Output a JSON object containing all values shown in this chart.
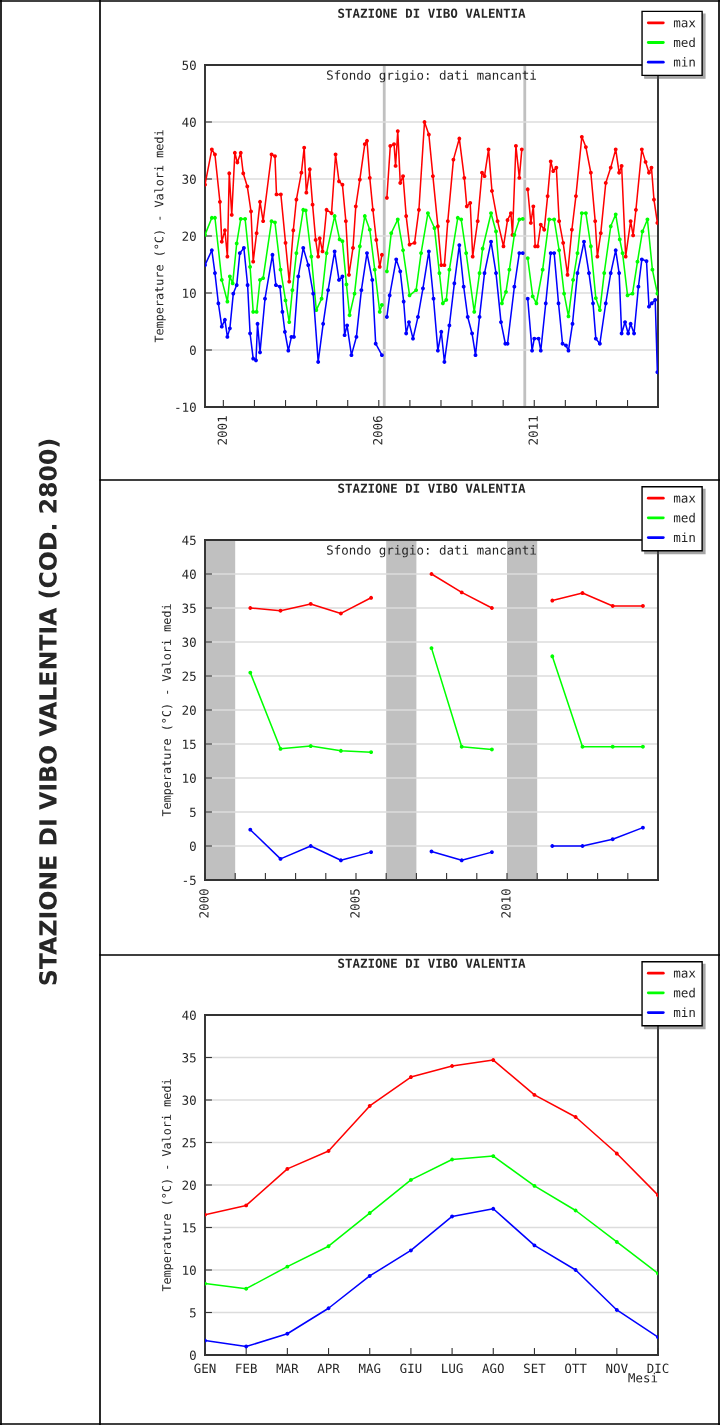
{
  "chart_data": [
    {
      "type": "other",
      "title": "STAZIONE DI VIBO VALENTIA (COD. 2800)"
    },
    {
      "type": "line",
      "title": "STAZIONE DI VIBO VALENTIA",
      "ylabel": "Temperature (°C) - Valori medi",
      "annotations": [
        "Sfondo grigio: dati mancanti"
      ],
      "xlim": [
        2000.41,
        2014.98
      ],
      "xticks": [
        {
          "value": 2001,
          "label": "2001"
        },
        {
          "value": 2002,
          "label": null
        },
        {
          "value": 2003,
          "label": null
        },
        {
          "value": 2004,
          "label": null
        },
        {
          "value": 2005,
          "label": null
        },
        {
          "value": 2006,
          "label": "2006"
        },
        {
          "value": 2007,
          "label": null
        },
        {
          "value": 2008,
          "label": null
        },
        {
          "value": 2009,
          "label": null
        },
        {
          "value": 2010,
          "label": null
        },
        {
          "value": 2011,
          "label": "2011"
        },
        {
          "value": 2012,
          "label": null
        },
        {
          "value": 2013,
          "label": null
        },
        {
          "value": 2014,
          "label": null
        }
      ],
      "ylim": [
        -10,
        50
      ],
      "yticks": [
        -10,
        0,
        10,
        20,
        30,
        40,
        50
      ],
      "grid": "y",
      "legend": "top right",
      "marker": "circle",
      "line_style": "solid",
      "bands": [
        {
          "axis": "x",
          "from": 2006.13,
          "to": 2006.22,
          "color": "#c0c0c0"
        },
        {
          "axis": "x",
          "from": 2010.65,
          "to": 2010.74,
          "color": "#c0c0c0"
        }
      ],
      "series": [
        {
          "name": "max",
          "color": "#ff0000",
          "x": [
            2000.41,
            2000.63,
            2000.73,
            2000.89,
            2000.95,
            2001.05,
            2001.13,
            2001.19,
            2001.27,
            2001.37,
            2001.45,
            2001.56,
            2001.64,
            2001.77,
            2001.89,
            2001.96,
            2002.07,
            2002.18,
            2002.28,
            2002.55,
            2002.66,
            2002.71,
            2002.85,
            2003.0,
            2003.12,
            2003.25,
            2003.35,
            2003.51,
            2003.6,
            2003.67,
            2003.78,
            2003.87,
            2003.97,
            2004.05,
            2004.1,
            2004.19,
            2004.32,
            2004.48,
            2004.61,
            2004.72,
            2004.83,
            2004.94,
            2005.04,
            2005.17,
            2005.26,
            2005.39,
            2005.55,
            2005.62,
            2005.71,
            2005.81,
            2005.92,
            2006.03,
            2006.1,
            2006.18,
            2006.26,
            2006.37,
            2006.49,
            2006.54,
            2006.61,
            2006.69,
            2006.78,
            2006.88,
            2006.99,
            2007.15,
            2007.29,
            2007.47,
            2007.61,
            2007.74,
            2007.9,
            2008.01,
            2008.11,
            2008.22,
            2008.4,
            2008.59,
            2008.75,
            2008.83,
            2008.94,
            2009.02,
            2009.18,
            2009.32,
            2009.4,
            2009.53,
            2009.64,
            2009.82,
            2010.01,
            2010.14,
            2010.25,
            2010.3,
            2010.41,
            2010.52,
            2010.6,
            2010.7,
            2010.79,
            2010.89,
            2010.97,
            2011.03,
            2011.11,
            2011.21,
            2011.32,
            2011.43,
            2011.53,
            2011.61,
            2011.71,
            2011.8,
            2011.93,
            2012.07,
            2012.21,
            2012.34,
            2012.53,
            2012.66,
            2012.82,
            2012.96,
            2013.03,
            2013.14,
            2013.3,
            2013.46,
            2013.62,
            2013.73,
            2013.81,
            2013.94,
            2014.1,
            2014.18,
            2014.27,
            2014.46,
            2014.58,
            2014.69,
            2014.77,
            2014.85,
            2014.96
          ],
          "values": [
            29,
            35.2,
            34.3,
            26,
            19,
            21,
            16.4,
            31,
            23.7,
            34.6,
            32.9,
            34.6,
            31,
            28.7,
            24.3,
            15.5,
            20.5,
            26,
            22.6,
            34.3,
            34,
            27.3,
            27.3,
            18.8,
            12,
            21,
            26.4,
            31.1,
            35.5,
            27.6,
            31.7,
            25.5,
            19.3,
            16.4,
            19.6,
            17.3,
            24.6,
            24,
            34.3,
            29.6,
            29,
            22.6,
            13.2,
            17.9,
            25.2,
            29.9,
            36.1,
            36.7,
            30.2,
            24.6,
            19.3,
            14.6,
            16.7,
            null,
            26.7,
            35.8,
            36.1,
            32.3,
            38.4,
            29.3,
            30.5,
            23.5,
            18.5,
            18.8,
            24.6,
            40,
            37.8,
            30.5,
            21.7,
            14.9,
            14.9,
            22.6,
            33.4,
            37.1,
            30.2,
            25.2,
            25.8,
            16.4,
            22.6,
            31.1,
            30.5,
            35.2,
            27.9,
            22.6,
            18.2,
            22.8,
            24,
            20.2,
            35.8,
            30.2,
            35.2,
            null,
            28.2,
            22.3,
            25.2,
            18.2,
            18.2,
            22,
            21.1,
            27,
            33.1,
            31.4,
            32,
            22.6,
            18.8,
            13.2,
            21.1,
            27,
            37.4,
            35.6,
            31.1,
            22.6,
            16.4,
            20.5,
            29.3,
            32,
            35.2,
            31.1,
            32.3,
            16.4,
            22.6,
            20.1,
            24.6,
            35.2,
            33,
            31.1,
            32,
            26.4,
            22.3
          ]
        },
        {
          "name": "med",
          "color": "#00ff00",
          "x": [
            2000.41,
            2000.63,
            2000.73,
            2000.95,
            2001.13,
            2001.21,
            2001.3,
            2001.43,
            2001.56,
            2001.7,
            2001.86,
            2001.96,
            2002.07,
            2002.18,
            2002.28,
            2002.55,
            2002.66,
            2002.84,
            2003.0,
            2003.12,
            2003.22,
            2003.35,
            2003.57,
            2003.65,
            2003.83,
            2003.99,
            2004.16,
            2004.32,
            2004.58,
            2004.74,
            2004.83,
            2004.96,
            2005.06,
            2005.22,
            2005.39,
            2005.55,
            2005.71,
            2005.87,
            2006.03,
            2006.1,
            2006.18,
            2006.26,
            2006.4,
            2006.61,
            2006.78,
            2006.99,
            2007.2,
            2007.36,
            2007.58,
            2007.79,
            2007.95,
            2008.06,
            2008.17,
            2008.27,
            2008.54,
            2008.65,
            2008.81,
            2009.07,
            2009.24,
            2009.34,
            2009.61,
            2009.77,
            2009.96,
            2010.09,
            2010.2,
            2010.36,
            2010.52,
            2010.63,
            2010.7,
            2010.79,
            2010.95,
            2011.07,
            2011.27,
            2011.48,
            2011.64,
            2011.8,
            2011.96,
            2012.1,
            2012.25,
            2012.39,
            2012.53,
            2012.66,
            2012.82,
            2012.98,
            2013.11,
            2013.25,
            2013.46,
            2013.62,
            2013.75,
            2013.84,
            2014.0,
            2014.16,
            2014.32,
            2014.48,
            2014.64,
            2014.8,
            2014.96
          ],
          "values": [
            20.2,
            23.2,
            23.2,
            12.3,
            8.5,
            12.9,
            11.7,
            18.7,
            23,
            23,
            14.6,
            6.7,
            6.7,
            12.3,
            12.6,
            22.6,
            22.4,
            14.1,
            8.7,
            4.9,
            10.5,
            17,
            24.6,
            24.5,
            16.4,
            7,
            9,
            17,
            23.5,
            19.4,
            19.1,
            11.5,
            6.1,
            9.9,
            18.2,
            23.5,
            21.1,
            14.1,
            6.7,
            7.9,
            null,
            13.8,
            20.5,
            22.9,
            17.5,
            9.6,
            10.5,
            17,
            24,
            21.4,
            13.5,
            8.2,
            8.8,
            14.1,
            23.2,
            22.9,
            17,
            6.7,
            13.5,
            17.8,
            24,
            20.8,
            8.2,
            10.2,
            14.1,
            20.2,
            22.9,
            23,
            null,
            16.1,
            9.4,
            8.2,
            14.1,
            22.9,
            22.9,
            17.5,
            9.9,
            5.9,
            12.3,
            17,
            24,
            24,
            18.2,
            9.1,
            7,
            13.5,
            21.7,
            23.8,
            19.4,
            17,
            9.6,
            9.9,
            15.5,
            20.8,
            22.9,
            14.1,
            9.9
          ]
        },
        {
          "name": "min",
          "color": "#0000ff",
          "x": [
            2000.41,
            2000.63,
            2000.73,
            2000.84,
            2000.95,
            2001.05,
            2001.13,
            2001.21,
            2001.32,
            2001.43,
            2001.53,
            2001.66,
            2001.78,
            2001.86,
            2001.96,
            2002.05,
            2002.1,
            2002.18,
            2002.34,
            2002.58,
            2002.69,
            2002.82,
            2002.9,
            2002.98,
            2003.09,
            2003.19,
            2003.27,
            2003.41,
            2003.57,
            2003.73,
            2003.89,
            2004.05,
            2004.21,
            2004.37,
            2004.58,
            2004.72,
            2004.83,
            2004.9,
            2004.98,
            2005.12,
            2005.28,
            2005.44,
            2005.62,
            2005.79,
            2005.9,
            2006.1,
            2006.18,
            2006.26,
            2006.35,
            2006.56,
            2006.69,
            2006.8,
            2006.88,
            2006.97,
            2007.1,
            2007.26,
            2007.42,
            2007.61,
            2007.76,
            2007.9,
            2008.01,
            2008.11,
            2008.27,
            2008.43,
            2008.59,
            2008.73,
            2008.86,
            2009.0,
            2009.11,
            2009.24,
            2009.4,
            2009.61,
            2009.77,
            2009.93,
            2010.07,
            2010.14,
            2010.36,
            2010.52,
            2010.63,
            2010.7,
            2010.79,
            2010.93,
            2011.0,
            2011.14,
            2011.21,
            2011.37,
            2011.53,
            2011.64,
            2011.78,
            2011.91,
            2012.02,
            2012.1,
            2012.23,
            2012.39,
            2012.6,
            2012.76,
            2012.89,
            2012.98,
            2013.11,
            2013.3,
            2013.46,
            2013.62,
            2013.73,
            2013.81,
            2013.92,
            2014.02,
            2014.1,
            2014.21,
            2014.35,
            2014.46,
            2014.61,
            2014.69,
            2014.78,
            2014.89,
            2014.96
          ],
          "values": [
            14.9,
            17.5,
            13.5,
            8.2,
            4.1,
            5.3,
            2.3,
            3.8,
            9.9,
            11.4,
            17,
            17.9,
            11.4,
            2.9,
            -1.5,
            -1.8,
            4.6,
            -0.4,
            9,
            16.7,
            11.4,
            11.1,
            6.7,
            3.2,
            -0.1,
            2.3,
            2.3,
            12.9,
            17.9,
            14.9,
            9.9,
            -2.1,
            4.6,
            10.5,
            17.3,
            12.3,
            12.9,
            2.6,
            4.3,
            -0.9,
            2.3,
            10.5,
            17,
            12.3,
            1.1,
            -0.9,
            null,
            5.8,
            9.6,
            15.9,
            13.8,
            8.5,
            2.9,
            4.9,
            2,
            5.8,
            10.8,
            17.3,
            9,
            -0.1,
            3.2,
            -2.1,
            4.3,
            11.7,
            18.4,
            11.1,
            5.8,
            2.9,
            -0.9,
            5.8,
            13.5,
            19,
            13.5,
            4.9,
            1.1,
            1.1,
            11.1,
            17,
            17,
            null,
            9,
            -0.1,
            2,
            2,
            -0.1,
            8.2,
            17,
            17,
            8.2,
            1.1,
            0.8,
            -0.1,
            4.6,
            13.5,
            19,
            13.5,
            8.2,
            2,
            1.1,
            8.2,
            13.5,
            17.5,
            13.5,
            2.9,
            4.9,
            2.9,
            4.6,
            2.9,
            11.1,
            15.9,
            15.6,
            7.6,
            8.2,
            8.8,
            -3.9
          ]
        }
      ]
    },
    {
      "type": "line",
      "title": "STAZIONE DI VIBO VALENTIA",
      "ylabel": "Temperature (°C) - Valori medi",
      "annotations": [
        "Sfondo grigio: dati mancanti"
      ],
      "x": [
        2001.5,
        2002.5,
        2003.5,
        2004.5,
        2005.5,
        2006.5,
        2007.5,
        2008.5,
        2009.5,
        2010.5,
        2011.5,
        2012.5,
        2013.5,
        2014.5
      ],
      "xlim": [
        2000,
        2015
      ],
      "xticks": [
        {
          "value": 2000,
          "label": "2000"
        },
        {
          "value": 2001,
          "label": null
        },
        {
          "value": 2002,
          "label": null
        },
        {
          "value": 2003,
          "label": null
        },
        {
          "value": 2004,
          "label": null
        },
        {
          "value": 2005,
          "label": "2005"
        },
        {
          "value": 2006,
          "label": null
        },
        {
          "value": 2007,
          "label": null
        },
        {
          "value": 2008,
          "label": null
        },
        {
          "value": 2009,
          "label": null
        },
        {
          "value": 2010,
          "label": "2010"
        },
        {
          "value": 2011,
          "label": null
        },
        {
          "value": 2012,
          "label": null
        },
        {
          "value": 2013,
          "label": null
        },
        {
          "value": 2014,
          "label": null
        }
      ],
      "ylim": [
        -5,
        45
      ],
      "yticks": [
        -5,
        0,
        5,
        10,
        15,
        20,
        25,
        30,
        35,
        40,
        45
      ],
      "grid": "y",
      "legend": "top right",
      "marker": "circle",
      "line_style": "solid",
      "bands": [
        {
          "axis": "x",
          "from": 2000,
          "to": 2001,
          "color": "#c0c0c0"
        },
        {
          "axis": "x",
          "from": 2006,
          "to": 2007,
          "color": "#c0c0c0"
        },
        {
          "axis": "x",
          "from": 2010,
          "to": 2011,
          "color": "#c0c0c0"
        }
      ],
      "series": [
        {
          "name": "max",
          "color": "#ff0000",
          "values": [
            35.0,
            34.6,
            35.6,
            34.2,
            36.5,
            null,
            40.0,
            37.3,
            35.0,
            null,
            36.1,
            37.2,
            35.3,
            35.3
          ]
        },
        {
          "name": "med",
          "color": "#00ff00",
          "values": [
            25.5,
            14.3,
            14.7,
            14.0,
            13.8,
            null,
            29.1,
            14.6,
            14.2,
            null,
            27.9,
            14.6,
            14.6,
            14.6
          ]
        },
        {
          "name": "min",
          "color": "#0000ff",
          "values": [
            2.4,
            -1.9,
            0.0,
            -2.1,
            -0.9,
            null,
            -0.8,
            -2.1,
            -0.9,
            null,
            0.0,
            0.0,
            1.0,
            2.7
          ]
        }
      ]
    },
    {
      "type": "line",
      "title": "STAZIONE DI VIBO VALENTIA",
      "ylabel": "Temperature (°C) - Valori medi",
      "xlabel": "Mesi",
      "categories": [
        "GEN",
        "FEB",
        "MAR",
        "APR",
        "MAG",
        "GIU",
        "LUG",
        "AGO",
        "SET",
        "OTT",
        "NOV",
        "DIC"
      ],
      "ylim": [
        0,
        40
      ],
      "yticks": [
        0,
        5,
        10,
        15,
        20,
        25,
        30,
        35,
        40
      ],
      "grid": "y",
      "legend": "top right",
      "marker": "circle",
      "line_style": "solid",
      "series": [
        {
          "name": "max",
          "color": "#ff0000",
          "values": [
            16.5,
            17.6,
            21.9,
            24.0,
            29.3,
            32.7,
            34.0,
            34.7,
            30.6,
            28.0,
            23.7,
            18.8
          ]
        },
        {
          "name": "med",
          "color": "#00ff00",
          "values": [
            8.4,
            7.8,
            10.4,
            12.8,
            16.7,
            20.6,
            23.0,
            23.4,
            19.9,
            17.0,
            13.3,
            9.6
          ]
        },
        {
          "name": "min",
          "color": "#0000ff",
          "values": [
            1.7,
            1.0,
            2.5,
            5.5,
            9.3,
            12.3,
            16.3,
            17.2,
            12.9,
            10.0,
            5.3,
            2.1
          ]
        }
      ]
    }
  ]
}
